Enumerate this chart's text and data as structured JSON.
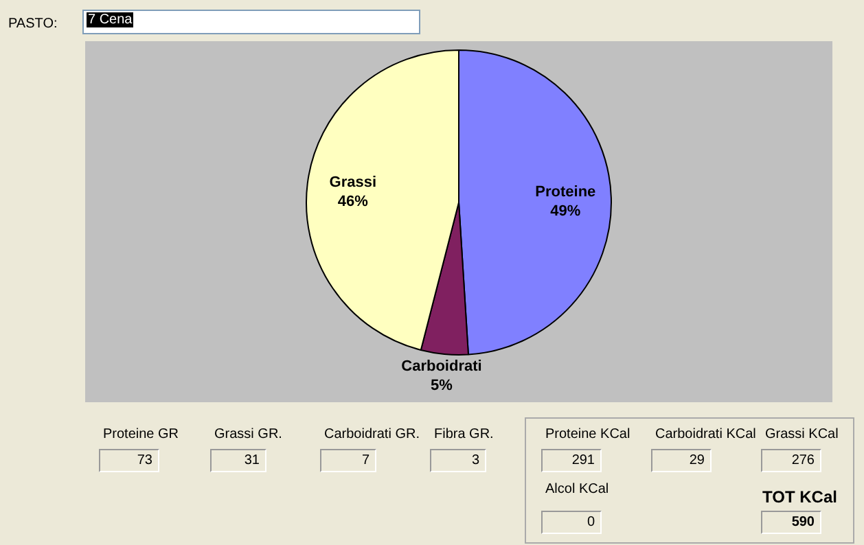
{
  "chart_data": {
    "type": "pie",
    "categories": [
      "Proteine",
      "Carboidrati",
      "Grassi"
    ],
    "values": [
      49,
      5,
      46
    ],
    "colors": [
      "#8080ff",
      "#802060",
      "#ffffc0"
    ],
    "value_labels": [
      "49%",
      "5%",
      "46%"
    ],
    "legend": false,
    "annotations": [
      "PASTO:",
      "7 Cena",
      "Proteine GR",
      "73",
      "Grassi GR.",
      "31",
      "Carboidrati GR.",
      "7",
      "Fibra GR.",
      "3",
      "Proteine KCal",
      "291",
      "Carboidrati KCal",
      "29",
      "Grassi KCal",
      "276",
      "Alcol KCal",
      "0",
      "TOT KCal",
      "590"
    ]
  }
}
